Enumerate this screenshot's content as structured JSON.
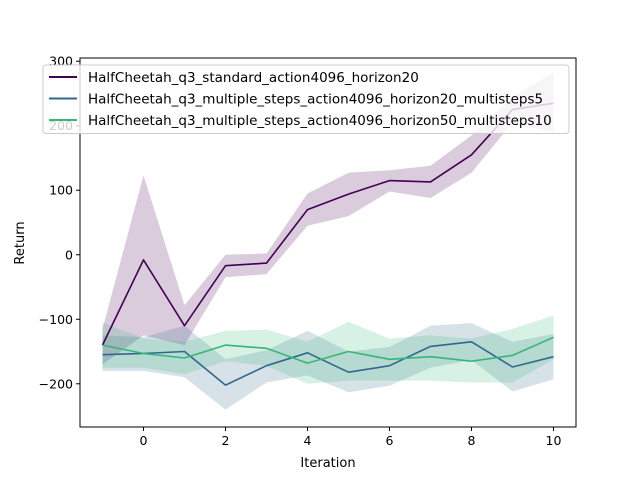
{
  "chart_data": {
    "type": "line",
    "title": "",
    "xlabel": "Iteration",
    "ylabel": "Return",
    "xlim": [
      -1.55,
      10.55
    ],
    "ylim": [
      -267,
      305
    ],
    "xticks": [
      0,
      2,
      4,
      6,
      8,
      10
    ],
    "yticks": [
      -200,
      -100,
      0,
      100,
      200,
      300
    ],
    "grid": false,
    "legend_position": "top",
    "x": [
      -1,
      0,
      1,
      2,
      3,
      4,
      5,
      6,
      7,
      8,
      9,
      10
    ],
    "series": [
      {
        "name": "HalfCheetah_q3_standard_action4096_horizon20",
        "color": "#440154",
        "values": [
          -140,
          -8,
          -110,
          -17,
          -13,
          70,
          94,
          115,
          113,
          155,
          225,
          235
        ],
        "lower": [
          -170,
          -125,
          -140,
          -35,
          -30,
          45,
          60,
          98,
          88,
          127,
          205,
          190
        ],
        "upper": [
          -115,
          123,
          -78,
          0,
          2,
          95,
          127,
          131,
          138,
          185,
          245,
          282
        ]
      },
      {
        "name": "HalfCheetah_q3_multiple_steps_action4096_horizon20_multisteps5",
        "color": "#31688e",
        "values": [
          -155,
          -153,
          -150,
          -202,
          -172,
          -152,
          -182,
          -172,
          -142,
          -135,
          -174,
          -158
        ],
        "lower": [
          -180,
          -180,
          -190,
          -240,
          -198,
          -187,
          -213,
          -203,
          -175,
          -163,
          -212,
          -193
        ],
        "upper": [
          -125,
          -128,
          -110,
          -162,
          -148,
          -118,
          -150,
          -143,
          -110,
          -106,
          -135,
          -123
        ]
      },
      {
        "name": "HalfCheetah_q3_multiple_steps_action4096_horizon50_multisteps10",
        "color": "#35b779",
        "values": [
          -140,
          -153,
          -160,
          -140,
          -145,
          -168,
          -150,
          -162,
          -158,
          -165,
          -156,
          -128
        ],
        "lower": [
          -175,
          -175,
          -185,
          -165,
          -172,
          -200,
          -195,
          -195,
          -195,
          -198,
          -198,
          -162
        ],
        "upper": [
          -105,
          -130,
          -135,
          -118,
          -116,
          -135,
          -104,
          -130,
          -125,
          -130,
          -115,
          -94
        ]
      }
    ]
  }
}
